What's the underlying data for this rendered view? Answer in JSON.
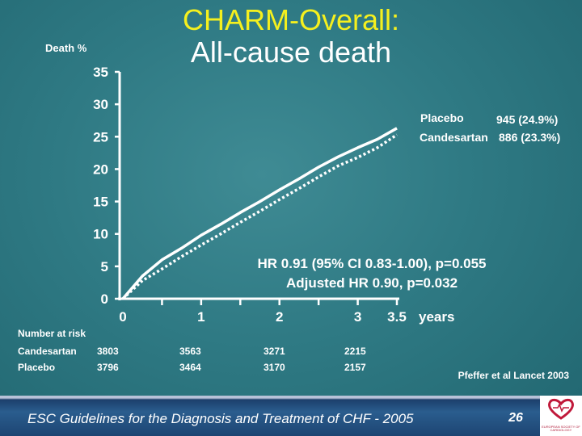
{
  "title": {
    "line1": "CHARM-Overall:",
    "line2": "All-cause death"
  },
  "chart_data": {
    "type": "line",
    "ylabel": "Death %",
    "xlabel": "years",
    "ylim": [
      0,
      35
    ],
    "xlim": [
      0,
      3.5
    ],
    "y_ticks": [
      "0",
      "5",
      "10",
      "15",
      "20",
      "25",
      "30",
      "35"
    ],
    "x_ticks": [
      "0",
      "1",
      "2",
      "3",
      "3.5"
    ],
    "series": [
      {
        "name": "Placebo",
        "style": "solid",
        "x": [
          0,
          0.25,
          0.5,
          0.75,
          1.0,
          1.25,
          1.5,
          1.75,
          2.0,
          2.25,
          2.5,
          2.75,
          3.0,
          3.25,
          3.5
        ],
        "y": [
          0,
          3.5,
          6.0,
          7.8,
          9.8,
          11.5,
          13.3,
          15.0,
          16.8,
          18.5,
          20.3,
          21.9,
          23.3,
          24.6,
          26.3
        ],
        "end_label": "945 (24.9%)"
      },
      {
        "name": "Candesartan",
        "style": "dotted",
        "x": [
          0,
          0.25,
          0.5,
          0.75,
          1.0,
          1.25,
          1.5,
          1.75,
          2.0,
          2.25,
          2.5,
          2.75,
          3.0,
          3.25,
          3.5
        ],
        "y": [
          0,
          2.8,
          4.6,
          6.5,
          8.3,
          10.0,
          11.8,
          13.5,
          15.3,
          17.0,
          18.8,
          20.5,
          21.8,
          23.3,
          25.3
        ],
        "end_label": "886 (23.3%)"
      }
    ],
    "annotations": [
      "HR 0.91 (95% CI 0.83-1.00), p=0.055",
      "Adjusted HR 0.90, p=0.032"
    ],
    "number_at_risk": {
      "heading": "Number at risk",
      "rows": [
        {
          "label": "Candesartan",
          "values": [
            "3803",
            "3563",
            "3271",
            "2215"
          ]
        },
        {
          "label": "Placebo",
          "values": [
            "3796",
            "3464",
            "3170",
            "2157"
          ]
        }
      ]
    },
    "colors": {
      "line": "#ffffff",
      "axis": "#ffffff"
    }
  },
  "reference": "Pfeffer et al Lancet 2003",
  "footer": {
    "text": "ESC Guidelines for the Diagnosis and Treatment of CHF - 2005",
    "page": "26"
  },
  "logo": {
    "text": "EUROPEAN SOCIETY OF CARDIOLOGY"
  },
  "colors": {
    "title_yellow": "#f5f01e",
    "background": "#2f7a84",
    "footer_blue": "#1d4472"
  }
}
